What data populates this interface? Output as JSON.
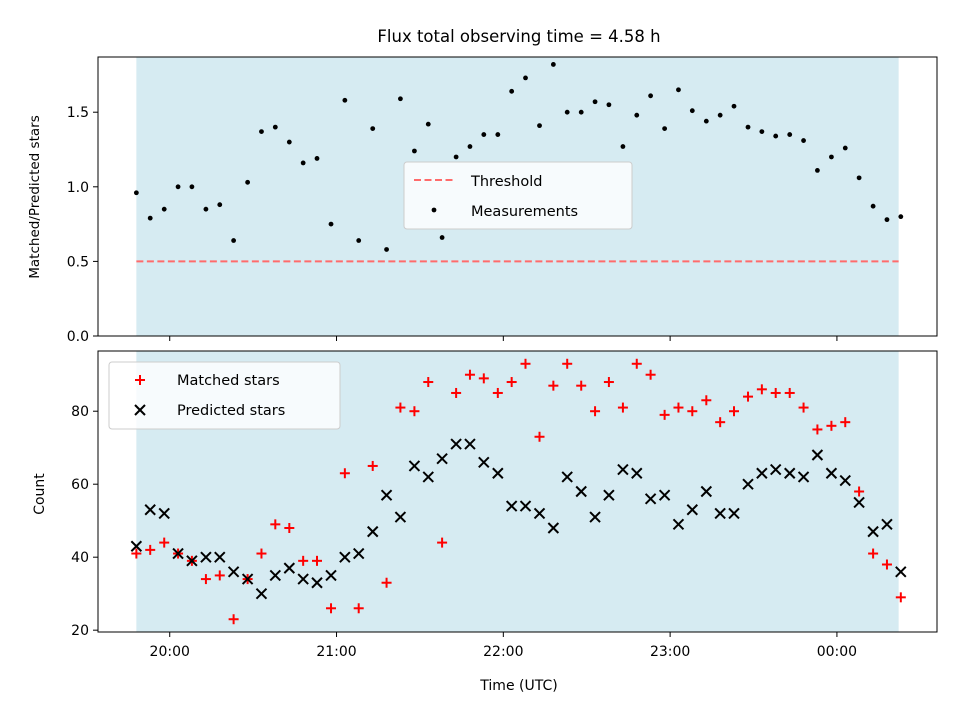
{
  "chart_data": [
    {
      "type": "scatter",
      "title": "Flux total observing time = 4.58 h",
      "ylabel": "Matched/Predicted stars",
      "ylim": [
        0,
        1.87
      ],
      "yticks": [
        "0.0",
        "0.5",
        "1.0",
        "1.5"
      ],
      "xlim_hours": [
        19.57,
        24.6
      ],
      "shaded_span_hours": [
        19.8,
        24.37
      ],
      "shade_color": "#add8e6",
      "grid": false,
      "legend_position": "center",
      "threshold": {
        "name": "Threshold",
        "value": 0.5,
        "color": "#ff6b6b",
        "style": "dashed"
      },
      "series": [
        {
          "name": "Measurements",
          "marker": "dot",
          "color": "#000000",
          "x": [
            19.8,
            19.883,
            19.967,
            20.05,
            20.133,
            20.217,
            20.3,
            20.383,
            20.467,
            20.55,
            20.633,
            20.717,
            20.8,
            20.883,
            20.967,
            21.05,
            21.133,
            21.217,
            21.3,
            21.383,
            21.467,
            21.55,
            21.633,
            21.717,
            21.8,
            21.883,
            21.967,
            22.05,
            22.133,
            22.217,
            22.3,
            22.383,
            22.467,
            22.55,
            22.633,
            22.717,
            22.8,
            22.883,
            22.967,
            23.05,
            23.133,
            23.217,
            23.3,
            23.383,
            23.467,
            23.55,
            23.633,
            23.717,
            23.8,
            23.883,
            23.967,
            24.05,
            24.133,
            24.217,
            24.3,
            24.383
          ],
          "y": [
            0.96,
            0.79,
            0.85,
            1.0,
            1.0,
            0.85,
            0.88,
            0.64,
            1.03,
            1.37,
            1.4,
            1.3,
            1.16,
            1.19,
            0.75,
            1.58,
            0.64,
            1.39,
            0.58,
            1.59,
            1.24,
            1.42,
            0.66,
            1.2,
            1.27,
            1.35,
            1.35,
            1.64,
            1.73,
            1.41,
            1.82,
            1.5,
            1.5,
            1.57,
            1.55,
            1.27,
            1.48,
            1.61,
            1.39,
            1.65,
            1.51,
            1.44,
            1.48,
            1.54,
            1.4,
            1.37,
            1.34,
            1.35,
            1.31,
            1.11,
            1.2,
            1.26,
            1.06,
            0.87,
            0.78,
            0.8
          ]
        }
      ]
    },
    {
      "type": "scatter",
      "title": "",
      "xlabel": "Time (UTC)",
      "ylabel": "Count",
      "ylim": [
        19.5,
        96.5
      ],
      "yticks": [
        "20",
        "40",
        "60",
        "80"
      ],
      "xlim_hours": [
        19.57,
        24.6
      ],
      "xtick_hours": [
        20,
        21,
        22,
        23,
        24
      ],
      "xtick_labels": [
        "20:00",
        "21:00",
        "22:00",
        "23:00",
        "00:00"
      ],
      "shaded_span_hours": [
        19.8,
        24.37
      ],
      "shade_color": "#add8e6",
      "grid": false,
      "legend_position": "upper left",
      "series": [
        {
          "name": "Matched stars",
          "marker": "plus",
          "color": "#ff0000",
          "x": [
            19.8,
            19.883,
            19.967,
            20.05,
            20.133,
            20.217,
            20.3,
            20.383,
            20.467,
            20.55,
            20.633,
            20.717,
            20.8,
            20.883,
            20.967,
            21.05,
            21.133,
            21.217,
            21.3,
            21.383,
            21.467,
            21.55,
            21.633,
            21.717,
            21.8,
            21.883,
            21.967,
            22.05,
            22.133,
            22.217,
            22.3,
            22.383,
            22.467,
            22.55,
            22.633,
            22.717,
            22.8,
            22.883,
            22.967,
            23.05,
            23.133,
            23.217,
            23.3,
            23.383,
            23.467,
            23.55,
            23.633,
            23.717,
            23.8,
            23.883,
            23.967,
            24.05,
            24.133,
            24.217,
            24.3,
            24.383
          ],
          "y": [
            41,
            42,
            44,
            41,
            39,
            34,
            35,
            23,
            34,
            41,
            49,
            48,
            39,
            39,
            26,
            63,
            26,
            65,
            33,
            81,
            80,
            88,
            44,
            85,
            90,
            89,
            85,
            88,
            93,
            73,
            87,
            93,
            87,
            80,
            88,
            81,
            93,
            90,
            79,
            81,
            80,
            83,
            77,
            80,
            84,
            86,
            85,
            85,
            81,
            75,
            76,
            77,
            58,
            41,
            38,
            29
          ]
        },
        {
          "name": "Predicted stars",
          "marker": "x",
          "color": "#000000",
          "x": [
            19.8,
            19.883,
            19.967,
            20.05,
            20.133,
            20.217,
            20.3,
            20.383,
            20.467,
            20.55,
            20.633,
            20.717,
            20.8,
            20.883,
            20.967,
            21.05,
            21.133,
            21.217,
            21.3,
            21.383,
            21.467,
            21.55,
            21.633,
            21.717,
            21.8,
            21.883,
            21.967,
            22.05,
            22.133,
            22.217,
            22.3,
            22.383,
            22.467,
            22.55,
            22.633,
            22.717,
            22.8,
            22.883,
            22.967,
            23.05,
            23.133,
            23.217,
            23.3,
            23.383,
            23.467,
            23.55,
            23.633,
            23.717,
            23.8,
            23.883,
            23.967,
            24.05,
            24.133,
            24.217,
            24.3,
            24.383
          ],
          "y": [
            43,
            53,
            52,
            41,
            39,
            40,
            40,
            36,
            34,
            30,
            35,
            37,
            34,
            33,
            35,
            40,
            41,
            47,
            57,
            51,
            65,
            62,
            67,
            71,
            71,
            66,
            63,
            54,
            54,
            52,
            48,
            62,
            58,
            51,
            57,
            64,
            63,
            56,
            57,
            49,
            53,
            58,
            52,
            52,
            60,
            63,
            64,
            63,
            62,
            68,
            63,
            61,
            55,
            47,
            49,
            36
          ]
        }
      ]
    }
  ]
}
